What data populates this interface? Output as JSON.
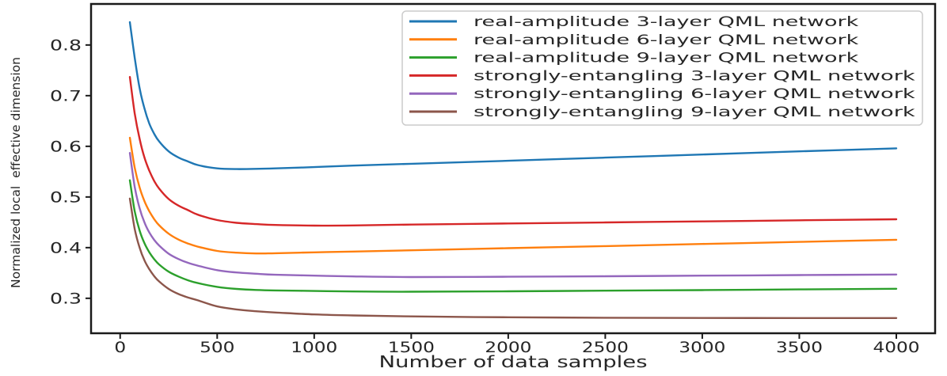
{
  "chart_data": {
    "type": "line",
    "title": "",
    "xlabel": "Number of data samples",
    "ylabel": "Normalized local  effective dimension",
    "xlim": [
      -150,
      4200
    ],
    "ylim": [
      0.231,
      0.881
    ],
    "xticks": [
      0,
      500,
      1000,
      1500,
      2000,
      2500,
      3000,
      3500,
      4000
    ],
    "yticks": [
      0.3,
      0.4,
      0.5,
      0.6,
      0.7,
      0.8
    ],
    "grid": false,
    "legend_position": "upper right",
    "x": [
      50,
      75,
      100,
      125,
      150,
      175,
      200,
      250,
      300,
      350,
      400,
      500,
      600,
      700,
      800,
      1000,
      1200,
      1500,
      2000,
      2500,
      3000,
      3500,
      4000
    ],
    "series": [
      {
        "name": "real-amplitude 3-layer QML network",
        "color": "#1f77b4",
        "values": [
          0.845,
          0.775,
          0.715,
          0.675,
          0.645,
          0.625,
          0.61,
          0.59,
          0.578,
          0.57,
          0.563,
          0.5565,
          0.555,
          0.5555,
          0.5565,
          0.559,
          0.562,
          0.5655,
          0.5715,
          0.5777,
          0.5838,
          0.59,
          0.596
        ]
      },
      {
        "name": "real-amplitude 6-layer QML network",
        "color": "#ff7f0e",
        "values": [
          0.617,
          0.558,
          0.519,
          0.492,
          0.472,
          0.4565,
          0.4445,
          0.4275,
          0.416,
          0.408,
          0.402,
          0.3935,
          0.39,
          0.3885,
          0.389,
          0.3907,
          0.3923,
          0.3948,
          0.399,
          0.403,
          0.4072,
          0.4113,
          0.4155
        ]
      },
      {
        "name": "real-amplitude 9-layer QML network",
        "color": "#2ca02c",
        "values": [
          0.533,
          0.472,
          0.434,
          0.409,
          0.391,
          0.3775,
          0.367,
          0.3525,
          0.343,
          0.3355,
          0.33,
          0.3225,
          0.3185,
          0.3165,
          0.3155,
          0.3145,
          0.3135,
          0.313,
          0.3138,
          0.315,
          0.3162,
          0.3175,
          0.3188
        ]
      },
      {
        "name": "strongly-entangling 3-layer QML network",
        "color": "#d62728",
        "values": [
          0.737,
          0.665,
          0.615,
          0.578,
          0.552,
          0.532,
          0.517,
          0.496,
          0.483,
          0.474,
          0.465,
          0.4545,
          0.449,
          0.4465,
          0.4448,
          0.4435,
          0.4438,
          0.4456,
          0.4477,
          0.4498,
          0.4518,
          0.4539,
          0.456
        ]
      },
      {
        "name": "strongly-entangling 6-layer QML network",
        "color": "#9467bd",
        "values": [
          0.587,
          0.52,
          0.478,
          0.45,
          0.43,
          0.4155,
          0.4045,
          0.388,
          0.3775,
          0.37,
          0.3645,
          0.3555,
          0.351,
          0.3485,
          0.3465,
          0.3448,
          0.3432,
          0.342,
          0.3425,
          0.3435,
          0.3447,
          0.3458,
          0.347
        ]
      },
      {
        "name": "strongly-entangling 9-layer QML network",
        "color": "#8c564b",
        "values": [
          0.497,
          0.437,
          0.4,
          0.375,
          0.3575,
          0.344,
          0.3335,
          0.3185,
          0.3085,
          0.3015,
          0.296,
          0.284,
          0.278,
          0.2745,
          0.272,
          0.2682,
          0.2662,
          0.2643,
          0.2625,
          0.2617,
          0.2612,
          0.261,
          0.261
        ]
      }
    ]
  }
}
